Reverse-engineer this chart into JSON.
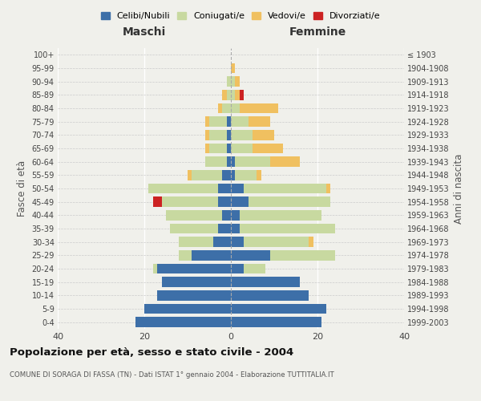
{
  "age_groups": [
    "0-4",
    "5-9",
    "10-14",
    "15-19",
    "20-24",
    "25-29",
    "30-34",
    "35-39",
    "40-44",
    "45-49",
    "50-54",
    "55-59",
    "60-64",
    "65-69",
    "70-74",
    "75-79",
    "80-84",
    "85-89",
    "90-94",
    "95-99",
    "100+"
  ],
  "birth_years": [
    "1999-2003",
    "1994-1998",
    "1989-1993",
    "1984-1988",
    "1979-1983",
    "1974-1978",
    "1969-1973",
    "1964-1968",
    "1959-1963",
    "1954-1958",
    "1949-1953",
    "1944-1948",
    "1939-1943",
    "1934-1938",
    "1929-1933",
    "1924-1928",
    "1919-1923",
    "1914-1918",
    "1909-1913",
    "1904-1908",
    "≤ 1903"
  ],
  "maschi": {
    "celibi": [
      22,
      20,
      17,
      16,
      17,
      9,
      4,
      3,
      2,
      3,
      3,
      2,
      1,
      1,
      1,
      1,
      0,
      0,
      0,
      0,
      0
    ],
    "coniugati": [
      0,
      0,
      0,
      0,
      1,
      3,
      8,
      11,
      13,
      13,
      16,
      7,
      5,
      4,
      4,
      4,
      2,
      1,
      1,
      0,
      0
    ],
    "vedovi": [
      0,
      0,
      0,
      0,
      0,
      0,
      0,
      0,
      0,
      0,
      0,
      1,
      0,
      1,
      1,
      1,
      1,
      1,
      0,
      0,
      0
    ],
    "divorziati": [
      0,
      0,
      0,
      0,
      0,
      0,
      0,
      0,
      0,
      2,
      0,
      0,
      0,
      0,
      0,
      0,
      0,
      0,
      0,
      0,
      0
    ]
  },
  "femmine": {
    "nubili": [
      21,
      22,
      18,
      16,
      3,
      9,
      3,
      2,
      2,
      4,
      3,
      1,
      1,
      0,
      0,
      0,
      0,
      0,
      0,
      0,
      0
    ],
    "coniugate": [
      0,
      0,
      0,
      0,
      5,
      15,
      15,
      22,
      19,
      19,
      19,
      5,
      8,
      5,
      5,
      4,
      2,
      1,
      1,
      0,
      0
    ],
    "vedove": [
      0,
      0,
      0,
      0,
      0,
      0,
      1,
      0,
      0,
      0,
      1,
      1,
      7,
      7,
      5,
      5,
      9,
      1,
      1,
      1,
      0
    ],
    "divorziate": [
      0,
      0,
      0,
      0,
      0,
      0,
      0,
      0,
      0,
      0,
      0,
      0,
      0,
      0,
      0,
      0,
      0,
      1,
      0,
      0,
      0
    ]
  },
  "colors": {
    "celibi_nubili": "#3d6fa8",
    "coniugati_e": "#c8d9a0",
    "vedovi_e": "#f0c060",
    "divorziati_e": "#cc2222"
  },
  "xlim": 40,
  "title": "Popolazione per età, sesso e stato civile - 2004",
  "subtitle": "COMUNE DI SORAGA DI FASSA (TN) - Dati ISTAT 1° gennaio 2004 - Elaborazione TUTTITALIA.IT",
  "ylabel_left": "Fasce di età",
  "ylabel_right": "Anni di nascita",
  "xlabel_maschi": "Maschi",
  "xlabel_femmine": "Femmine",
  "legend_labels": [
    "Celibi/Nubili",
    "Coniugati/e",
    "Vedovi/e",
    "Divorziati/e"
  ],
  "bg_color": "#f0f0eb"
}
